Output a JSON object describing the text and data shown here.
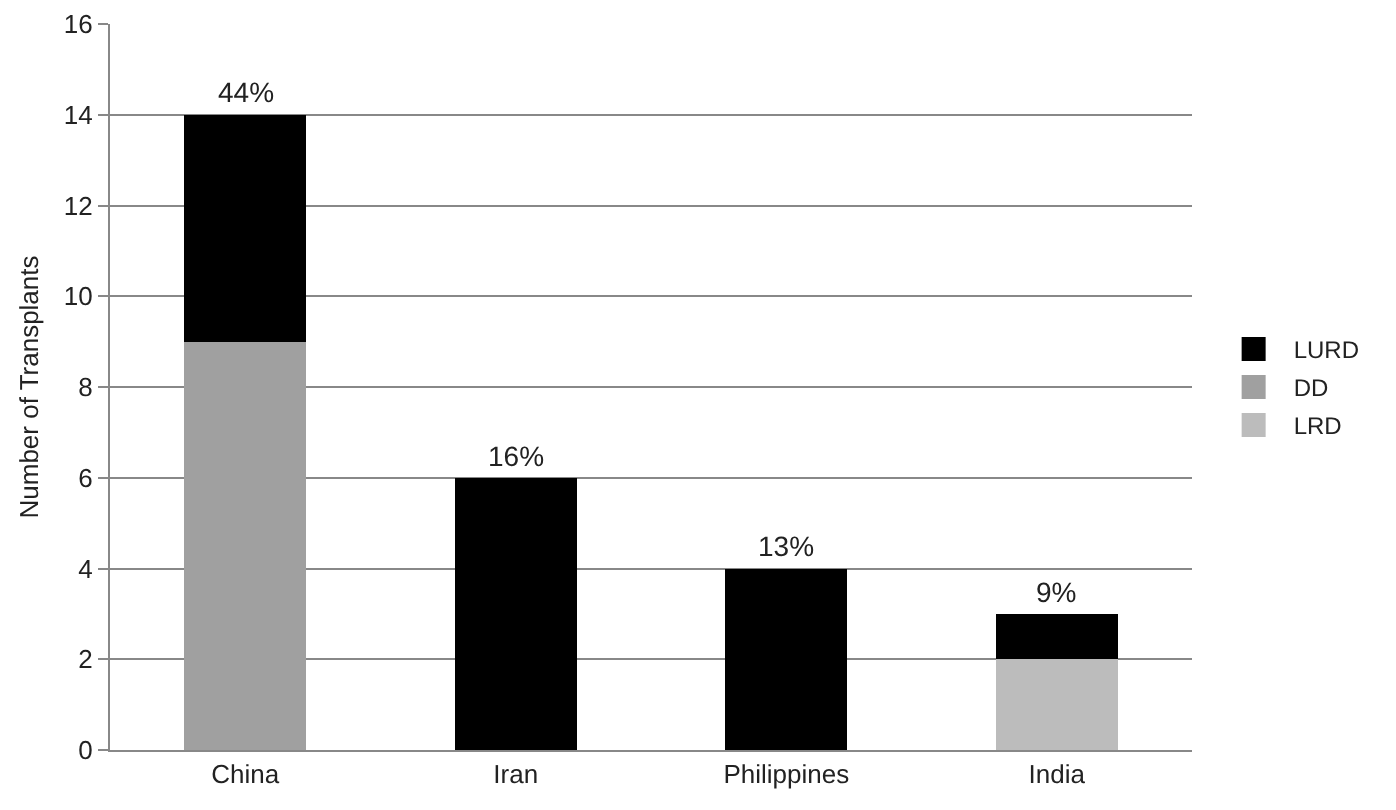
{
  "chart_data": {
    "type": "bar",
    "ylabel": "Number of Transplants",
    "categories": [
      "China",
      "Iran",
      "Philippines",
      "India"
    ],
    "stacked": true,
    "series": [
      {
        "name": "LRD",
        "color": "#bcbcbc",
        "values": [
          null,
          null,
          null,
          2
        ]
      },
      {
        "name": "DD",
        "color": "#a0a0a0",
        "values": [
          9,
          null,
          null,
          null
        ]
      },
      {
        "name": "LURD",
        "color": "#000000",
        "values": [
          5,
          6,
          4,
          1
        ]
      }
    ],
    "annotations": [
      {
        "text": "44%",
        "x": "China",
        "y": 14
      },
      {
        "text": "16%",
        "x": "Iran",
        "y": 6
      },
      {
        "text": "13%",
        "x": "Philippines",
        "y": 4
      },
      {
        "text": "9%",
        "x": "India",
        "y": 3
      }
    ],
    "ylim": [
      0,
      16
    ],
    "yticks": [
      0,
      2,
      4,
      6,
      8,
      10,
      12,
      14,
      16
    ],
    "grid": "y",
    "legend": "right"
  }
}
